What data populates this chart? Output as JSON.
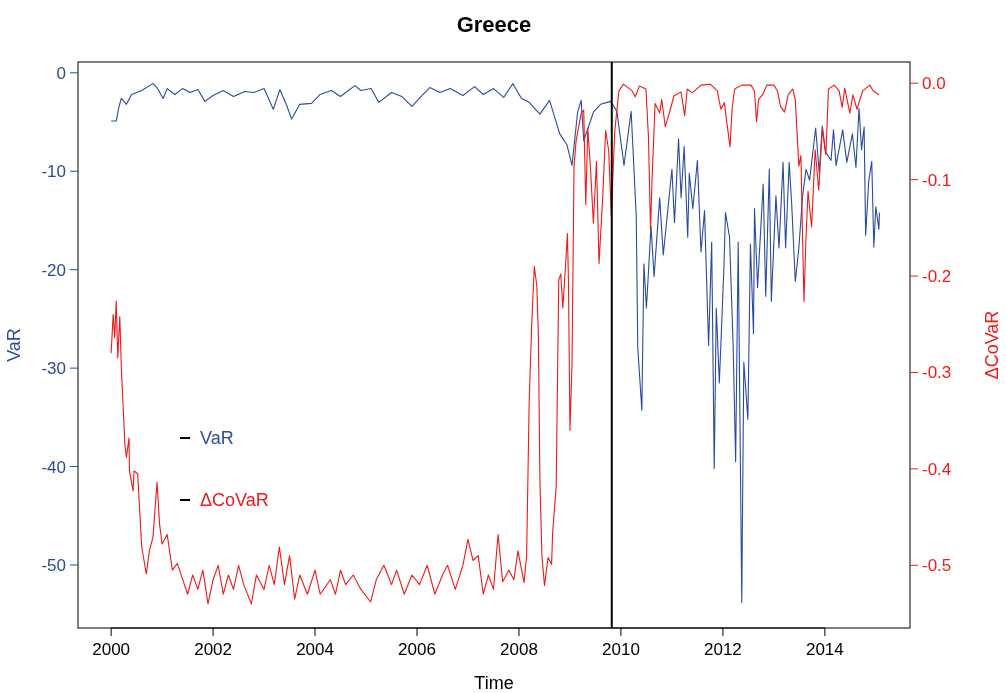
{
  "chart_data": {
    "type": "line",
    "title": "Greece",
    "xlabel": "Time",
    "ylabel": "VaR",
    "y2label": "ΔCoVaR",
    "xlim": [
      1999.35,
      2015.67
    ],
    "xticks": [
      2000,
      2002,
      2004,
      2006,
      2008,
      2010,
      2012,
      2014
    ],
    "ylim": [
      -56.4,
      1.1
    ],
    "yticks": [
      0,
      -10,
      -20,
      -30,
      -40,
      -50
    ],
    "y2lim": [
      -0.565,
      0.022
    ],
    "y2ticks": [
      {
        "value": 0,
        "label": "0.0"
      },
      {
        "value": -0.1,
        "label": "-0.1"
      },
      {
        "value": -0.2,
        "label": "-0.2"
      },
      {
        "value": -0.3,
        "label": "-0.3"
      },
      {
        "value": -0.4,
        "label": "-0.4"
      },
      {
        "value": -0.5,
        "label": "-0.5"
      }
    ],
    "grid": false,
    "legend": "bottom left",
    "ref_lines": [
      {
        "axis": "x",
        "value": 2009.82,
        "color": "#000000"
      }
    ],
    "series": [
      {
        "name": "VaR",
        "color": "#2a4b9b",
        "x": [
          2000,
          2000.1,
          2000.15,
          2000.2,
          2000.3,
          2000.4,
          2000.6,
          2000.82,
          2000.9,
          2001.02,
          2001.1,
          2001.25,
          2001.4,
          2001.55,
          2001.7,
          2001.84,
          2002.0,
          2002.2,
          2002.4,
          2002.62,
          2002.8,
          2003.0,
          2003.18,
          2003.31,
          2003.45,
          2003.54,
          2003.7,
          2003.93,
          2004.1,
          2004.32,
          2004.5,
          2004.78,
          2004.9,
          2005.1,
          2005.25,
          2005.5,
          2005.7,
          2005.9,
          2006.1,
          2006.25,
          2006.45,
          2006.65,
          2006.9,
          2007.13,
          2007.3,
          2007.5,
          2007.7,
          2007.88,
          2008.05,
          2008.2,
          2008.41,
          2008.6,
          2008.8,
          2008.94,
          2009.04,
          2009.15,
          2009.22,
          2009.27,
          2009.46,
          2009.6,
          2009.8,
          2009.92,
          2010.06,
          2010.2,
          2010.3,
          2010.33,
          2010.41,
          2010.45,
          2010.5,
          2010.59,
          2010.65,
          2010.76,
          2010.83,
          2011.0,
          2011.05,
          2011.13,
          2011.18,
          2011.24,
          2011.31,
          2011.34,
          2011.41,
          2011.5,
          2011.57,
          2011.64,
          2011.69,
          2011.72,
          2011.78,
          2011.83,
          2011.87,
          2011.93,
          2012.02,
          2012.05,
          2012.13,
          2012.2,
          2012.25,
          2012.3,
          2012.37,
          2012.41,
          2012.49,
          2012.54,
          2012.6,
          2012.62,
          2012.68,
          2012.79,
          2012.84,
          2012.91,
          2012.95,
          2013.04,
          2013.1,
          2013.18,
          2013.23,
          2013.3,
          2013.35,
          2013.42,
          2013.49,
          2013.56,
          2013.63,
          2013.7,
          2013.82,
          2013.89,
          2013.95,
          2014.01,
          2014.12,
          2014.17,
          2014.22,
          2014.35,
          2014.43,
          2014.54,
          2014.61,
          2014.67,
          2014.72,
          2014.77,
          2014.8,
          2014.86,
          2014.92,
          2014.96,
          2015.0,
          2015.06,
          2015.07
        ],
        "values": [
          -4.9,
          -4.9,
          -3.5,
          -2.6,
          -3.2,
          -2.2,
          -1.8,
          -1.1,
          -1.5,
          -2.6,
          -1.6,
          -2.2,
          -1.6,
          -2.0,
          -1.7,
          -2.9,
          -2.3,
          -1.8,
          -2.4,
          -1.9,
          -2.0,
          -1.6,
          -3.7,
          -1.7,
          -3.4,
          -4.7,
          -3.2,
          -3.1,
          -2.2,
          -1.8,
          -2.4,
          -1.3,
          -1.8,
          -1.6,
          -3.0,
          -2.0,
          -2.4,
          -3.4,
          -2.3,
          -1.5,
          -2.0,
          -1.6,
          -2.3,
          -1.4,
          -2.2,
          -1.6,
          -2.5,
          -1.1,
          -2.6,
          -3.0,
          -4.2,
          -2.8,
          -6.2,
          -7.3,
          -9.4,
          -4.0,
          -2.8,
          -6.9,
          -4.0,
          -3.2,
          -2.9,
          -3.9,
          -9.4,
          -3.9,
          -14.5,
          -27.9,
          -34.3,
          -19.4,
          -23.9,
          -15.6,
          -20.7,
          -12.7,
          -18.5,
          -9.8,
          -15.2,
          -6.7,
          -12.7,
          -7.5,
          -16.7,
          -10.2,
          -13.8,
          -8.9,
          -18.2,
          -14.0,
          -22.8,
          -27.7,
          -17.2,
          -40.2,
          -23.9,
          -31.5,
          -19.8,
          -14.2,
          -16.7,
          -27.5,
          -39.5,
          -17.2,
          -53.8,
          -29.4,
          -35.2,
          -17.4,
          -26.5,
          -13.8,
          -21.8,
          -11.3,
          -22.7,
          -9.8,
          -23.2,
          -12.5,
          -17.8,
          -9.1,
          -17.8,
          -9.1,
          -13.4,
          -21.2,
          -17.8,
          -12.7,
          -9.8,
          -10.9,
          -5.6,
          -10.2,
          -5.4,
          -8.0,
          -8.9,
          -5.8,
          -9.4,
          -5.8,
          -9.1,
          -6.2,
          -9.6,
          -3.6,
          -7.8,
          -5.5,
          -16.5,
          -11.0,
          -9.0,
          -17.7,
          -13.6,
          -15.9,
          -14.2
        ]
      },
      {
        "name": "ΔCoVaR",
        "color": "#f01818",
        "axis": "y2",
        "x": [
          2000,
          2000.04,
          2000.07,
          2000.1,
          2000.13,
          2000.17,
          2000.2,
          2000.27,
          2000.3,
          2000.35,
          2000.36,
          2000.43,
          2000.45,
          2000.52,
          2000.6,
          2000.69,
          2000.75,
          2000.82,
          2000.9,
          2000.95,
          2001.0,
          2001.1,
          2001.2,
          2001.3,
          2001.43,
          2001.5,
          2001.6,
          2001.7,
          2001.8,
          2001.9,
          2002.0,
          2002.1,
          2002.2,
          2002.3,
          2002.4,
          2002.5,
          2002.6,
          2002.75,
          2002.85,
          2003.0,
          2003.1,
          2003.2,
          2003.3,
          2003.4,
          2003.5,
          2003.6,
          2003.7,
          2003.85,
          2004.0,
          2004.1,
          2004.3,
          2004.4,
          2004.5,
          2004.6,
          2004.75,
          2004.9,
          2005.09,
          2005.2,
          2005.35,
          2005.5,
          2005.6,
          2005.75,
          2005.9,
          2006.05,
          2006.2,
          2006.35,
          2006.5,
          2006.6,
          2006.75,
          2006.9,
          2007.0,
          2007.1,
          2007.2,
          2007.3,
          2007.4,
          2007.5,
          2007.59,
          2007.68,
          2007.8,
          2007.9,
          2007.98,
          2008.1,
          2008.15,
          2008.2,
          2008.25,
          2008.3,
          2008.35,
          2008.38,
          2008.41,
          2008.45,
          2008.5,
          2008.57,
          2008.64,
          2008.66,
          2008.73,
          2008.78,
          2008.82,
          2008.86,
          2008.91,
          2008.95,
          2008.97,
          2009.0,
          2009.04,
          2009.08,
          2009.12,
          2009.22,
          2009.27,
          2009.31,
          2009.35,
          2009.4,
          2009.46,
          2009.52,
          2009.57,
          2009.64,
          2009.7,
          2009.76,
          2009.81,
          2009.88,
          2009.96,
          2010.05,
          2010.22,
          2010.28,
          2010.36,
          2010.49,
          2010.54,
          2010.58,
          2010.61,
          2010.67,
          2010.76,
          2010.8,
          2010.87,
          2010.97,
          2011.04,
          2011.18,
          2011.25,
          2011.3,
          2011.4,
          2011.57,
          2011.75,
          2011.89,
          2011.96,
          2012.03,
          2012.07,
          2012.14,
          2012.18,
          2012.23,
          2012.37,
          2012.55,
          2012.62,
          2012.66,
          2012.7,
          2012.79,
          2012.86,
          2013.0,
          2013.07,
          2013.13,
          2013.21,
          2013.28,
          2013.37,
          2013.42,
          2013.49,
          2013.53,
          2013.56,
          2013.59,
          2013.63,
          2013.67,
          2013.74,
          2013.81,
          2013.88,
          2013.95,
          2014.02,
          2014.07,
          2014.18,
          2014.28,
          2014.34,
          2014.39,
          2014.49,
          2014.55,
          2014.63,
          2014.74,
          2014.88,
          2014.95,
          2015.06
        ],
        "values": [
          -0.28,
          -0.24,
          -0.264,
          -0.226,
          -0.285,
          -0.242,
          -0.295,
          -0.375,
          -0.388,
          -0.368,
          -0.402,
          -0.423,
          -0.402,
          -0.405,
          -0.481,
          -0.509,
          -0.485,
          -0.471,
          -0.414,
          -0.457,
          -0.478,
          -0.468,
          -0.505,
          -0.498,
          -0.519,
          -0.53,
          -0.51,
          -0.525,
          -0.505,
          -0.54,
          -0.515,
          -0.5,
          -0.53,
          -0.51,
          -0.525,
          -0.5,
          -0.52,
          -0.54,
          -0.51,
          -0.525,
          -0.5,
          -0.52,
          -0.481,
          -0.52,
          -0.49,
          -0.535,
          -0.51,
          -0.53,
          -0.505,
          -0.53,
          -0.515,
          -0.53,
          -0.505,
          -0.52,
          -0.51,
          -0.525,
          -0.538,
          -0.515,
          -0.5,
          -0.52,
          -0.505,
          -0.53,
          -0.51,
          -0.52,
          -0.5,
          -0.53,
          -0.51,
          -0.5,
          -0.525,
          -0.5,
          -0.473,
          -0.495,
          -0.49,
          -0.53,
          -0.51,
          -0.525,
          -0.468,
          -0.517,
          -0.505,
          -0.515,
          -0.485,
          -0.518,
          -0.49,
          -0.33,
          -0.25,
          -0.19,
          -0.21,
          -0.26,
          -0.41,
          -0.49,
          -0.521,
          -0.492,
          -0.499,
          -0.466,
          -0.418,
          -0.204,
          -0.198,
          -0.233,
          -0.192,
          -0.156,
          -0.204,
          -0.36,
          -0.292,
          -0.086,
          -0.06,
          -0.031,
          -0.028,
          -0.126,
          -0.047,
          -0.086,
          -0.145,
          -0.081,
          -0.187,
          -0.121,
          -0.049,
          -0.07,
          -0.137,
          -0.049,
          -0.008,
          -0.001,
          -0.008,
          -0.014,
          -0.003,
          -0.006,
          -0.056,
          -0.152,
          -0.1,
          -0.021,
          -0.031,
          -0.017,
          -0.045,
          -0.027,
          -0.013,
          -0.009,
          -0.034,
          -0.006,
          -0.01,
          -0.002,
          -0.001,
          -0.008,
          -0.027,
          -0.02,
          -0.038,
          -0.066,
          -0.027,
          -0.006,
          -0.002,
          -0.002,
          -0.008,
          -0.04,
          -0.017,
          -0.011,
          -0.002,
          -0.002,
          -0.008,
          -0.024,
          -0.03,
          -0.012,
          -0.006,
          -0.017,
          -0.086,
          -0.075,
          -0.152,
          -0.226,
          -0.16,
          -0.112,
          -0.149,
          -0.069,
          -0.111,
          -0.047,
          -0.074,
          -0.006,
          -0.002,
          -0.008,
          -0.025,
          -0.005,
          -0.031,
          -0.012,
          -0.027,
          -0.008,
          -0.002,
          -0.008,
          -0.012
        ]
      }
    ]
  }
}
